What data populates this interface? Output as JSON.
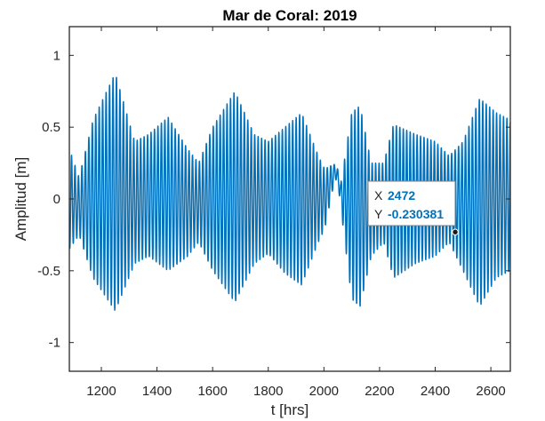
{
  "colors": {
    "line": "#0072BD",
    "axes": "#262626",
    "datatip_value": "#0072BD"
  },
  "chart_data": {
    "type": "line",
    "title": "Mar de Coral: 2019",
    "xlabel": "t [hrs]",
    "ylabel": "Amplitud [m]",
    "xlim": [
      1085,
      2670
    ],
    "ylim": [
      -1.2,
      1.2
    ],
    "xticks": [
      1200,
      1400,
      1600,
      1800,
      2000,
      2200,
      2400,
      2600
    ],
    "xtick_labels": [
      "1200",
      "1400",
      "1600",
      "1800",
      "2000",
      "2200",
      "2400",
      "2600"
    ],
    "yticks": [
      1,
      0.5,
      0,
      -0.5,
      -1
    ],
    "ytick_labels": [
      "1",
      "0.5",
      "0",
      "-0.5",
      "-1"
    ],
    "grid": false,
    "series": [
      {
        "style": "dense oscillation (semidiurnal tide, period ~12.4 hrs)",
        "period_hrs": 12.42,
        "envelope_points": [
          {
            "t": 1085,
            "max": 0.35,
            "min": -0.35
          },
          {
            "t": 1120,
            "max": 0.15,
            "min": -0.25
          },
          {
            "t": 1170,
            "max": 0.55,
            "min": -0.55
          },
          {
            "t": 1250,
            "max": 0.88,
            "min": -0.78
          },
          {
            "t": 1320,
            "max": 0.4,
            "min": -0.45
          },
          {
            "t": 1370,
            "max": 0.45,
            "min": -0.4
          },
          {
            "t": 1440,
            "max": 0.57,
            "min": -0.5
          },
          {
            "t": 1510,
            "max": 0.35,
            "min": -0.4
          },
          {
            "t": 1550,
            "max": 0.25,
            "min": -0.3
          },
          {
            "t": 1600,
            "max": 0.5,
            "min": -0.5
          },
          {
            "t": 1680,
            "max": 0.75,
            "min": -0.72
          },
          {
            "t": 1750,
            "max": 0.45,
            "min": -0.45
          },
          {
            "t": 1800,
            "max": 0.4,
            "min": -0.38
          },
          {
            "t": 1860,
            "max": 0.5,
            "min": -0.52
          },
          {
            "t": 1920,
            "max": 0.6,
            "min": -0.6
          },
          {
            "t": 1980,
            "max": 0.3,
            "min": -0.3
          },
          {
            "t": 2005,
            "max": 0.2,
            "min": -0.2
          },
          {
            "t": 2040,
            "max": 0.15,
            "min": 0.05
          },
          {
            "t": 2060,
            "max": 0.1,
            "min": -0.05
          },
          {
            "t": 2100,
            "max": 0.6,
            "min": -0.7
          },
          {
            "t": 2130,
            "max": 0.65,
            "min": -0.75
          },
          {
            "t": 2170,
            "max": 0.25,
            "min": -0.4
          },
          {
            "t": 2215,
            "max": 0.25,
            "min": -0.3
          },
          {
            "t": 2250,
            "max": 0.52,
            "min": -0.55
          },
          {
            "t": 2330,
            "max": 0.45,
            "min": -0.45
          },
          {
            "t": 2400,
            "max": 0.4,
            "min": -0.4
          },
          {
            "t": 2450,
            "max": 0.3,
            "min": -0.3
          },
          {
            "t": 2500,
            "max": 0.4,
            "min": -0.5
          },
          {
            "t": 2560,
            "max": 0.7,
            "min": -0.75
          },
          {
            "t": 2620,
            "max": 0.6,
            "min": -0.55
          },
          {
            "t": 2670,
            "max": 0.55,
            "min": -0.5
          }
        ],
        "mean_level_points": [
          {
            "t": 2000,
            "value": 0.0
          },
          {
            "t": 2030,
            "value": 0.12
          },
          {
            "t": 2045,
            "value": 0.17
          },
          {
            "t": 2060,
            "value": 0.05
          }
        ]
      }
    ],
    "datatip": {
      "x": 2472,
      "y": -0.230381,
      "x_label": "X",
      "y_label": "Y",
      "x_text": "2472",
      "y_text": "-0.230381"
    }
  }
}
